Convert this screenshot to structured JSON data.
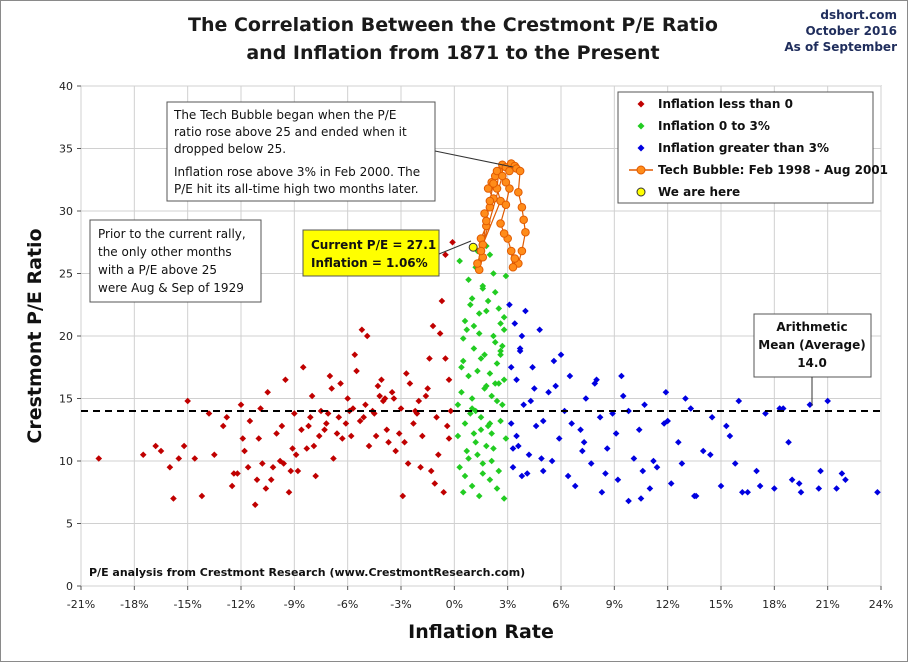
{
  "header": {
    "title_line1": "The Correlation Between the Crestmont P/E Ratio",
    "title_line2": "and Inflation from 1871 to the Present",
    "source": [
      "dshort.com",
      "October 2016",
      "As of September"
    ]
  },
  "annotations": {
    "tech_bubble_note": [
      "The Tech Bubble began when the P/E",
      "ratio rose above 25 and ended when it",
      "dropped below 25.",
      "Inflation rose above 3% in Feb 2000. The",
      "P/E hit its all-time high two months later."
    ],
    "rally_note": [
      "Prior to the current rally,",
      "the only other months",
      "with a P/E above 25",
      "were Aug & Sep of 1929"
    ],
    "current_box": [
      "Current P/E = 27.1",
      "Inflation = 1.06%"
    ],
    "mean_box": [
      "Arithmetic",
      "Mean (Average)",
      "14.0"
    ],
    "credit": "P/E analysis from Crestmont Research (www.CrestmontResearch.com)"
  },
  "colors": {
    "negative": "#c00000",
    "low": "#22cc22",
    "high": "#0000e0",
    "bubble_fill": "#ff8c1a",
    "bubble_line": "#e05a00",
    "current_fill": "#ffff00",
    "current_box_bg": "#ffff00",
    "mean_line": "#000000"
  },
  "chart_data": {
    "type": "scatter",
    "title": "The Correlation Between the Crestmont P/E Ratio and Inflation from 1871 to the Present",
    "xlabel": "Inflation Rate",
    "ylabel": "Crestmont P/E Ratio",
    "xlim": [
      -21,
      24
    ],
    "ylim": [
      0,
      40
    ],
    "x_ticks": [
      "-21%",
      "-18%",
      "-15%",
      "-12%",
      "-9%",
      "-6%",
      "-3%",
      "0%",
      "3%",
      "6%",
      "9%",
      "12%",
      "15%",
      "18%",
      "21%",
      "24%"
    ],
    "x_tick_values": [
      -21,
      -18,
      -15,
      -12,
      -9,
      -6,
      -3,
      0,
      3,
      6,
      9,
      12,
      15,
      18,
      21,
      24
    ],
    "y_ticks": [
      "0",
      "5",
      "10",
      "15",
      "20",
      "25",
      "30",
      "35",
      "40"
    ],
    "y_tick_values": [
      0,
      5,
      10,
      15,
      20,
      25,
      30,
      35,
      40
    ],
    "grid": true,
    "legend_position": "top-right",
    "mean_line": {
      "value": 14.0
    },
    "series": [
      {
        "name": "Inflation less than 0",
        "marker": "diamond",
        "x": [
          -20.0,
          -16.5,
          -16.0,
          -15.8,
          -15.2,
          -15.0,
          -14.2,
          -13.5,
          -13.0,
          -12.5,
          -12.2,
          -12.0,
          -11.8,
          -11.5,
          -11.2,
          -11.0,
          -10.8,
          -10.5,
          -10.3,
          -10.0,
          -9.8,
          -9.5,
          -9.3,
          -9.0,
          -8.8,
          -8.5,
          -8.3,
          -8.0,
          -7.8,
          -7.5,
          -7.3,
          -7.0,
          -6.8,
          -6.5,
          -6.3,
          -6.0,
          -5.8,
          -5.5,
          -5.3,
          -5.0,
          -4.8,
          -4.5,
          -4.3,
          -4.0,
          -3.8,
          -3.5,
          -3.3,
          -3.0,
          -2.8,
          -2.5,
          -2.3,
          -2.0,
          -1.8,
          -1.5,
          -1.3,
          -1.0,
          -0.8,
          -0.5,
          -0.3,
          -0.1,
          -12.8,
          -11.6,
          -10.9,
          -9.7,
          -8.9,
          -7.9,
          -7.2,
          -6.6,
          -5.9,
          -5.1,
          -4.4,
          -3.7,
          -2.9,
          -2.1,
          -1.6,
          -0.9,
          -0.4,
          -0.2,
          -1.1,
          -2.6,
          -4.1,
          -5.6,
          -6.9,
          -8.1,
          -9.2,
          -10.6,
          -11.9,
          -13.8,
          -15.5,
          -17.5,
          -4.9,
          -5.2,
          -3.1,
          -1.9,
          -0.6,
          -0.7,
          -1.4,
          -2.2,
          -3.4,
          -4.6,
          -6.1,
          -7.6,
          -9.1,
          -10.2,
          -11.1,
          -8.6,
          -7.1,
          -5.7,
          -4.2,
          -2.7,
          -1.2,
          -0.3,
          -0.5,
          -3.9,
          -6.4,
          -8.2,
          -9.6,
          -12.4,
          -14.6,
          -16.8
        ],
        "y": [
          10.2,
          10.8,
          9.5,
          7.0,
          11.2,
          14.8,
          7.2,
          10.5,
          12.8,
          8.0,
          9.0,
          14.5,
          10.8,
          13.2,
          6.5,
          11.8,
          9.8,
          15.5,
          8.5,
          12.2,
          10.0,
          16.5,
          7.5,
          13.8,
          9.2,
          17.5,
          11.0,
          15.2,
          8.8,
          14.0,
          12.5,
          16.8,
          10.2,
          13.5,
          11.8,
          15.0,
          12.0,
          17.2,
          13.2,
          14.5,
          11.2,
          13.8,
          16.0,
          14.8,
          12.5,
          15.5,
          10.8,
          14.2,
          11.5,
          16.2,
          13.0,
          14.8,
          12.0,
          15.8,
          9.2,
          13.5,
          20.2,
          26.5,
          11.8,
          27.5,
          13.5,
          9.5,
          14.2,
          12.8,
          10.5,
          11.2,
          13.0,
          12.2,
          14.0,
          13.5,
          12.0,
          11.5,
          7.2,
          13.8,
          15.2,
          10.5,
          12.8,
          14.0,
          8.2,
          9.8,
          16.5,
          18.5,
          15.8,
          13.5,
          9.2,
          7.8,
          11.8,
          13.8,
          10.2,
          10.5,
          20.0,
          20.5,
          12.2,
          9.5,
          7.5,
          22.8,
          18.2,
          14.0,
          15.0,
          14.0,
          13.0,
          12.0,
          11.0,
          9.5,
          8.5,
          12.5,
          13.8,
          14.2,
          15.2,
          17.0,
          20.8,
          16.5,
          18.2,
          15.0,
          16.2,
          12.8,
          9.8,
          9.0,
          10.2,
          11.2
        ]
      },
      {
        "name": "Inflation 0 to 3%",
        "marker": "diamond",
        "x": [
          0.2,
          0.3,
          0.4,
          0.5,
          0.5,
          0.6,
          0.7,
          0.8,
          0.8,
          0.9,
          1.0,
          1.0,
          1.1,
          1.2,
          1.2,
          1.3,
          1.4,
          1.4,
          1.5,
          1.6,
          1.6,
          1.7,
          1.8,
          1.8,
          1.9,
          2.0,
          2.0,
          2.1,
          2.2,
          2.2,
          2.3,
          2.4,
          2.4,
          2.5,
          2.6,
          2.6,
          2.7,
          2.8,
          2.8,
          2.9,
          0.3,
          0.6,
          0.9,
          1.1,
          1.3,
          1.5,
          1.7,
          1.9,
          2.1,
          2.3,
          2.5,
          2.7,
          2.9,
          0.4,
          0.7,
          1.0,
          1.2,
          1.4,
          1.6,
          1.8,
          2.0,
          2.2,
          2.4,
          2.6,
          2.8,
          0.5,
          1.0,
          1.5,
          2.0,
          2.5,
          0.8,
          1.3,
          1.8,
          2.3,
          2.8,
          0.2,
          0.6,
          1.1,
          1.6,
          2.1,
          2.6
        ],
        "y": [
          12.0,
          9.5,
          15.5,
          18.0,
          7.5,
          13.0,
          20.5,
          10.2,
          16.8,
          22.5,
          8.0,
          14.2,
          19.0,
          25.5,
          11.5,
          17.2,
          21.8,
          7.2,
          13.5,
          24.0,
          9.8,
          18.5,
          16.0,
          22.0,
          12.8,
          26.5,
          8.5,
          15.2,
          20.0,
          11.0,
          23.5,
          14.8,
          17.8,
          9.2,
          21.0,
          13.2,
          19.2,
          7.0,
          16.5,
          24.8,
          26.0,
          8.8,
          13.8,
          20.8,
          10.5,
          18.2,
          15.8,
          22.8,
          12.2,
          19.5,
          16.2,
          14.5,
          11.8,
          17.5,
          10.8,
          23.0,
          14.0,
          20.2,
          9.0,
          27.2,
          13.0,
          25.0,
          7.8,
          18.8,
          21.5,
          19.8,
          15.0,
          12.5,
          17.0,
          22.2,
          24.5,
          26.8,
          11.2,
          16.2,
          20.5,
          14.5,
          21.2,
          12.2,
          23.8,
          10.0,
          18.5
        ]
      },
      {
        "name": "Inflation greater than 3%",
        "marker": "diamond",
        "x": [
          3.1,
          3.2,
          3.3,
          3.4,
          3.5,
          3.6,
          3.7,
          3.8,
          3.9,
          4.0,
          4.2,
          4.4,
          4.6,
          4.8,
          5.0,
          5.3,
          5.6,
          5.9,
          6.2,
          6.5,
          6.8,
          7.1,
          7.4,
          7.7,
          8.0,
          8.3,
          8.6,
          8.9,
          9.2,
          9.5,
          9.8,
          10.1,
          10.4,
          10.7,
          11.0,
          11.4,
          11.8,
          12.2,
          12.6,
          13.0,
          13.5,
          14.0,
          14.5,
          15.0,
          15.5,
          16.0,
          16.5,
          17.0,
          17.5,
          18.0,
          18.5,
          19.0,
          19.5,
          20.0,
          20.5,
          21.0,
          22.0,
          23.8,
          3.2,
          3.5,
          3.8,
          4.1,
          4.5,
          5.0,
          5.5,
          6.0,
          6.6,
          7.2,
          7.9,
          8.5,
          9.1,
          9.8,
          10.5,
          11.2,
          12.0,
          12.8,
          13.6,
          14.4,
          15.3,
          16.2,
          17.2,
          18.3,
          19.4,
          20.6,
          21.5,
          3.3,
          3.7,
          4.3,
          4.9,
          5.7,
          6.4,
          7.3,
          8.2,
          9.4,
          10.6,
          11.9,
          13.3,
          15.8,
          18.8,
          21.8
        ],
        "y": [
          22.5,
          13.0,
          9.5,
          21.0,
          16.5,
          11.2,
          19.0,
          8.8,
          14.5,
          22.0,
          10.5,
          17.5,
          12.8,
          20.5,
          9.2,
          15.5,
          18.0,
          11.8,
          14.0,
          16.8,
          8.0,
          12.5,
          15.0,
          9.8,
          16.5,
          7.5,
          11.0,
          13.8,
          8.5,
          15.2,
          6.8,
          10.2,
          12.5,
          14.5,
          7.8,
          9.5,
          13.0,
          8.2,
          11.5,
          15.0,
          7.2,
          10.8,
          13.5,
          8.0,
          12.0,
          14.8,
          7.5,
          9.2,
          13.8,
          7.8,
          14.2,
          8.5,
          7.5,
          14.5,
          7.8,
          14.8,
          8.5,
          7.5,
          17.5,
          12.0,
          20.0,
          9.0,
          15.8,
          13.2,
          10.0,
          18.5,
          13.0,
          10.8,
          16.2,
          9.0,
          12.2,
          14.0,
          7.0,
          10.0,
          13.2,
          9.8,
          7.2,
          10.5,
          12.8,
          7.5,
          8.0,
          14.2,
          8.2,
          9.2,
          7.8,
          11.0,
          18.8,
          14.8,
          10.2,
          16.0,
          8.8,
          11.5,
          13.5,
          16.8,
          9.2,
          15.5,
          14.2,
          9.8,
          11.5,
          9.0
        ]
      },
      {
        "name": "Tech Bubble: Feb 1998 - Aug 2001",
        "marker": "circle",
        "x": [
          1.4,
          1.6,
          1.5,
          1.8,
          1.7,
          2.0,
          2.2,
          1.9,
          2.1,
          2.3,
          2.5,
          2.4,
          2.6,
          1.6,
          1.8,
          2.0,
          2.2,
          2.4,
          2.7,
          2.9,
          3.1,
          3.2,
          3.4,
          3.5,
          3.7,
          3.6,
          3.8,
          3.9,
          4.0,
          3.8,
          3.6,
          3.4,
          3.3,
          3.2,
          3.0,
          2.8,
          2.6,
          2.9,
          3.1,
          2.9,
          2.7,
          1.5,
          1.3
        ],
        "y": [
          25.3,
          26.3,
          27.8,
          28.8,
          29.8,
          30.3,
          31.0,
          31.8,
          32.3,
          32.8,
          33.2,
          31.8,
          30.8,
          27.3,
          29.2,
          30.8,
          32.2,
          33.2,
          33.7,
          33.5,
          33.2,
          33.8,
          33.6,
          33.4,
          33.2,
          31.5,
          30.3,
          29.3,
          28.3,
          26.8,
          25.8,
          26.2,
          25.5,
          26.8,
          27.8,
          28.2,
          29.0,
          30.5,
          31.8,
          32.3,
          32.8,
          26.8,
          25.8
        ]
      },
      {
        "name": "We are here",
        "marker": "circle",
        "x": [
          1.06
        ],
        "y": [
          27.1
        ]
      }
    ]
  }
}
